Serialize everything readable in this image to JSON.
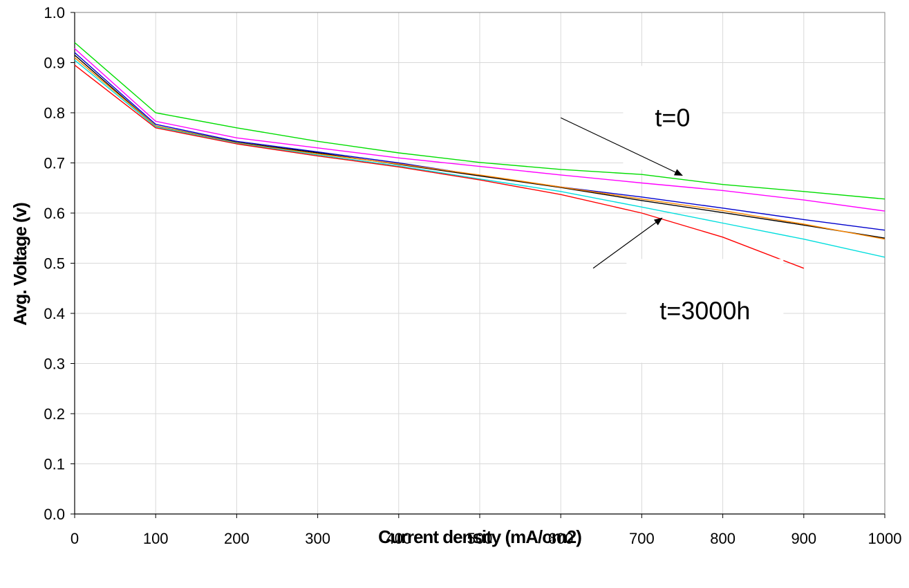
{
  "chart_data": {
    "type": "line",
    "title": "",
    "xlabel": "Current density (mA/cm2)",
    "ylabel": "Avg. Voltage (v)",
    "xlim": [
      0,
      1000
    ],
    "ylim": [
      0,
      1.0
    ],
    "xticks": [
      "0",
      "100",
      "200",
      "300",
      "400",
      "500",
      "600",
      "700",
      "800",
      "900",
      "1000"
    ],
    "yticks": [
      "0.0",
      "0.1",
      "0.2",
      "0.3",
      "0.4",
      "0.5",
      "0.6",
      "0.7",
      "0.8",
      "0.9",
      "1.0"
    ],
    "grid": true,
    "legend": "none",
    "series": [
      {
        "color": "#00dd00",
        "x": [
          0,
          100,
          200,
          300,
          400,
          500,
          600,
          700,
          800,
          900,
          1000
        ],
        "y": [
          0.94,
          0.8,
          0.77,
          0.743,
          0.72,
          0.701,
          0.687,
          0.677,
          0.657,
          0.643,
          0.628
        ]
      },
      {
        "color": "#ff00ff",
        "x": [
          0,
          100,
          200,
          300,
          400,
          500,
          600,
          700,
          800,
          900,
          1000
        ],
        "y": [
          0.928,
          0.783,
          0.75,
          0.73,
          0.71,
          0.693,
          0.676,
          0.66,
          0.645,
          0.626,
          0.604
        ]
      },
      {
        "color": "#0000cc",
        "x": [
          0,
          100,
          200,
          300,
          400,
          500,
          600,
          700,
          800,
          900,
          1000
        ],
        "y": [
          0.92,
          0.777,
          0.743,
          0.722,
          0.7,
          0.675,
          0.652,
          0.632,
          0.61,
          0.587,
          0.566
        ]
      },
      {
        "color": "#000000",
        "x": [
          0,
          100,
          200,
          300,
          400,
          500,
          600,
          700,
          800,
          900,
          1000
        ],
        "y": [
          0.915,
          0.774,
          0.741,
          0.72,
          0.697,
          0.674,
          0.651,
          0.625,
          0.601,
          0.576,
          0.55
        ]
      },
      {
        "color": "#ff8800",
        "x": [
          0,
          100,
          200,
          300,
          400,
          500,
          600,
          700,
          800,
          900,
          1000
        ],
        "y": [
          0.91,
          0.774,
          0.74,
          0.718,
          0.698,
          0.676,
          0.652,
          0.628,
          0.605,
          0.578,
          0.548
        ]
      },
      {
        "color": "#00dddd",
        "x": [
          0,
          100,
          200,
          300,
          400,
          500,
          600,
          700,
          800,
          900,
          1000
        ],
        "y": [
          0.905,
          0.772,
          0.739,
          0.716,
          0.694,
          0.668,
          0.643,
          0.612,
          0.58,
          0.548,
          0.512
        ]
      },
      {
        "color": "#ff0000",
        "x": [
          0,
          100,
          200,
          300,
          400,
          500,
          600,
          700,
          800,
          900
        ],
        "y": [
          0.895,
          0.77,
          0.738,
          0.714,
          0.692,
          0.666,
          0.637,
          0.6,
          0.552,
          0.49
        ]
      }
    ],
    "annotations": [
      {
        "text": "t=0",
        "x": 738,
        "y": 0.79,
        "arrow_from": [
          600,
          0.79
        ],
        "arrow_to": [
          750,
          0.675
        ]
      },
      {
        "text": "t=3000h",
        "x": 778,
        "y": 0.405,
        "arrow_from": [
          640,
          0.49
        ],
        "arrow_to": [
          725,
          0.59
        ]
      }
    ]
  }
}
